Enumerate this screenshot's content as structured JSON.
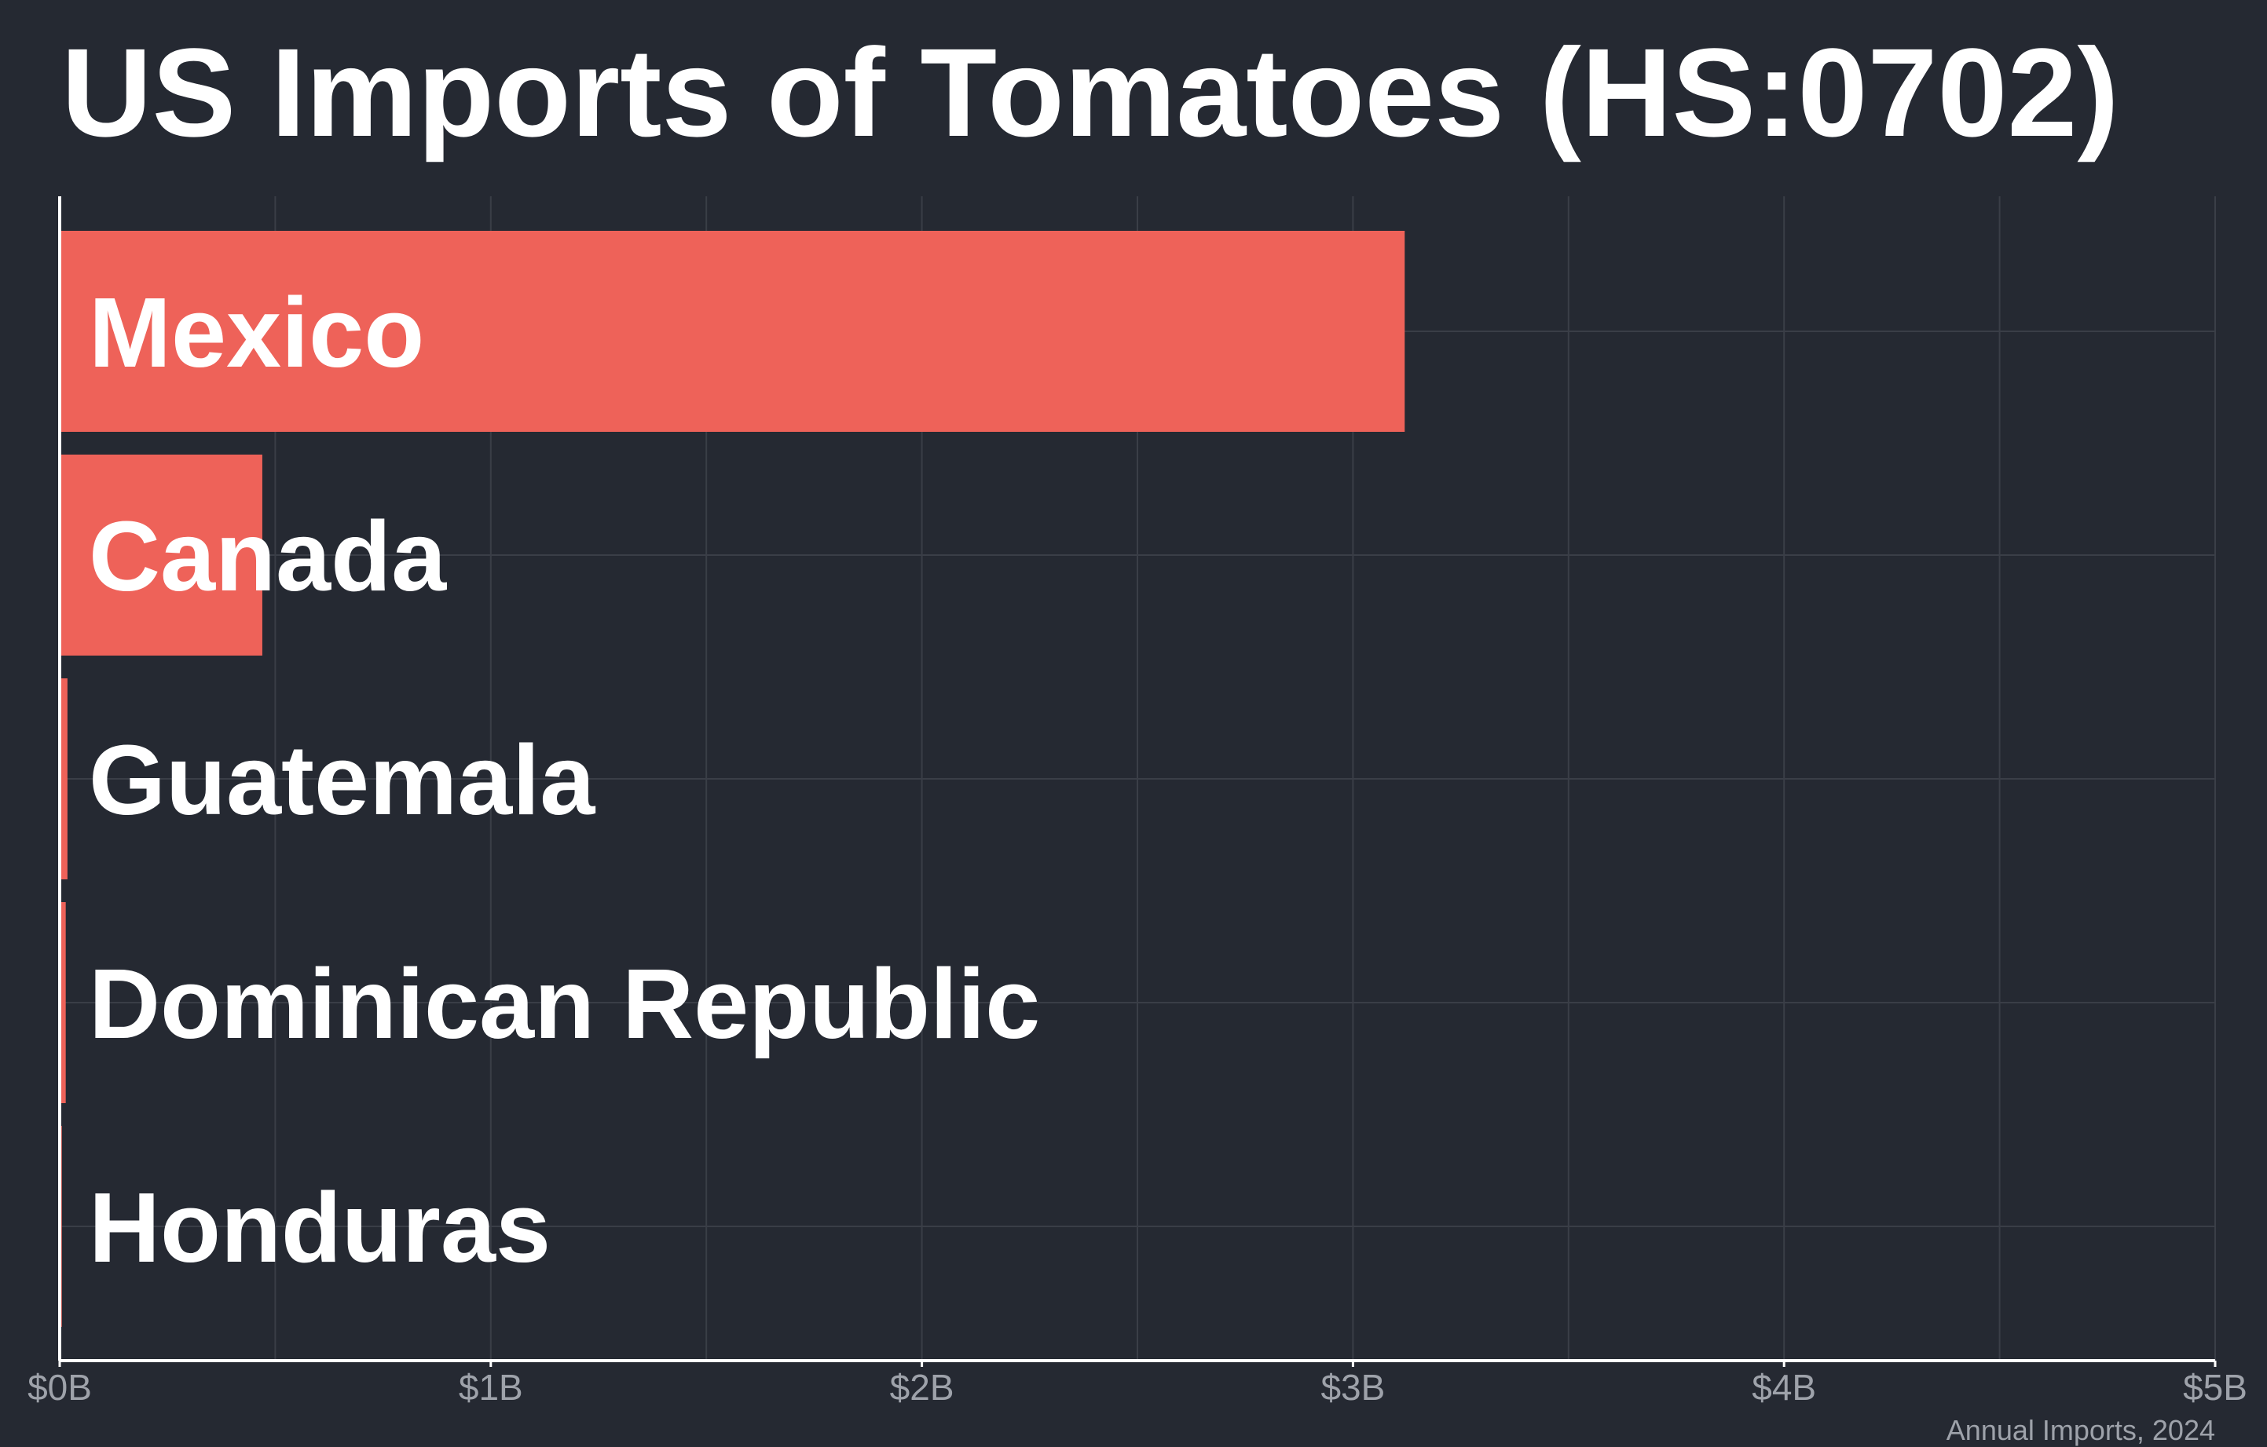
{
  "colors": {
    "background": "#252932",
    "bar": "#ee6259",
    "text": "#ffffff",
    "muted_text": "#9ea2aa",
    "grid": "#3a3e47",
    "axis": "#ffffff"
  },
  "chart_data": {
    "type": "bar",
    "orientation": "horizontal",
    "title": "US Imports of Tomatoes (HS:0702)",
    "caption": "Annual Imports, 2024",
    "categories": [
      "Mexico",
      "Canada",
      "Guatemala",
      "Dominican Republic",
      "Honduras"
    ],
    "values": [
      3.12,
      0.47,
      0.018,
      0.014,
      0.005
    ],
    "value_unit": "billion USD",
    "xlim": [
      0,
      5
    ],
    "x_ticks": [
      0,
      1,
      2,
      3,
      4,
      5
    ],
    "x_tick_labels": [
      "$0B",
      "$1B",
      "$2B",
      "$3B",
      "$4B",
      "$5B"
    ],
    "grid": true,
    "legend": "none"
  }
}
